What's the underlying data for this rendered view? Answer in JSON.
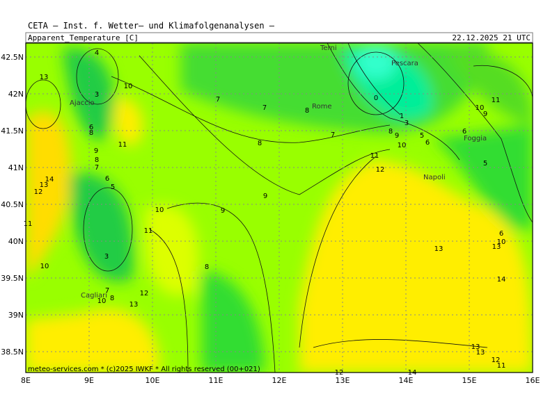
{
  "header": "CETA — Inst. f. Wetter— und Klimafolgenanalysen —",
  "title": "Apparent_Temperature [C]",
  "date": "22.12.2025 21 UTC",
  "footer": "meteo-services.com * (c)2025 IWKF * All rights reserved (00+021)",
  "lon_ticks": [
    {
      "value": 8,
      "label": "8E"
    },
    {
      "value": 9,
      "label": "9E"
    },
    {
      "value": 10,
      "label": "10E"
    },
    {
      "value": 11,
      "label": "11E"
    },
    {
      "value": 12,
      "label": "12E"
    },
    {
      "value": 13,
      "label": "13E"
    },
    {
      "value": 14,
      "label": "14E"
    },
    {
      "value": 15,
      "label": "15E"
    },
    {
      "value": 16,
      "label": "16E"
    }
  ],
  "lat_ticks": [
    {
      "value": 42.5,
      "label": "42.5N"
    },
    {
      "value": 42,
      "label": "42N"
    },
    {
      "value": 41.5,
      "label": "41.5N"
    },
    {
      "value": 41,
      "label": "41N"
    },
    {
      "value": 40.5,
      "label": "40.5N"
    },
    {
      "value": 40,
      "label": "40N"
    },
    {
      "value": 39.5,
      "label": "39.5N"
    },
    {
      "value": 39,
      "label": "39N"
    },
    {
      "value": 38.5,
      "label": "38.5N"
    }
  ],
  "cities": [
    "Terni",
    "Pescara",
    "Ajaccio",
    "Rome",
    "Foggia",
    "Napoli",
    "Cagliari"
  ],
  "contour_labels": [
    4,
    13,
    10,
    3,
    7,
    7,
    8,
    0,
    11,
    10,
    9,
    1,
    3,
    6,
    8,
    11,
    8,
    7,
    8,
    9,
    5,
    6,
    10,
    6,
    9,
    8,
    7,
    11,
    12,
    5,
    14,
    13,
    12,
    6,
    5,
    9,
    10,
    9,
    11,
    11,
    6,
    10,
    13,
    13,
    3,
    10,
    8,
    14,
    7,
    12,
    8,
    10,
    13,
    13,
    13,
    12,
    11,
    12,
    14
  ]
}
